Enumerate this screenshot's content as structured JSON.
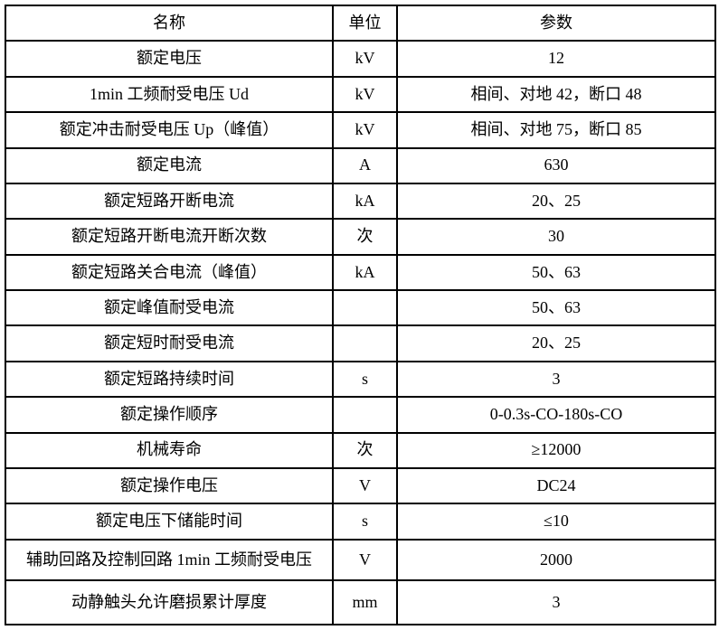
{
  "table": {
    "headers": {
      "name": "名称",
      "unit": "单位",
      "value": "参数"
    },
    "rows": [
      {
        "name": "额定电压",
        "unit": "kV",
        "value": "12"
      },
      {
        "name": "1min 工频耐受电压 Ud",
        "unit": "kV",
        "value": "相间、对地 42，断口 48"
      },
      {
        "name": "额定冲击耐受电压 Up（峰值）",
        "unit": "kV",
        "value": "相间、对地 75，断口 85"
      },
      {
        "name": "额定电流",
        "unit": "A",
        "value": "630"
      },
      {
        "name": "额定短路开断电流",
        "unit": "kA",
        "value": "20、25"
      },
      {
        "name": "额定短路开断电流开断次数",
        "unit": "次",
        "value": "30"
      },
      {
        "name": "额定短路关合电流（峰值）",
        "unit": "kA",
        "value": "50、63"
      },
      {
        "name": "额定峰值耐受电流",
        "unit": "",
        "value": "50、63"
      },
      {
        "name": "额定短时耐受电流",
        "unit": "",
        "value": "20、25"
      },
      {
        "name": "额定短路持续时间",
        "unit": "s",
        "value": "3"
      },
      {
        "name": "额定操作顺序",
        "unit": "",
        "value": "0-0.3s-CO-180s-CO"
      },
      {
        "name": "机械寿命",
        "unit": "次",
        "value": "≥12000"
      },
      {
        "name": "额定操作电压",
        "unit": "V",
        "value": "DC24"
      },
      {
        "name": "额定电压下储能时间",
        "unit": "s",
        "value": "≤10"
      },
      {
        "name": "辅助回路及控制回路 1min 工频耐受电压",
        "unit": "V",
        "value": "2000"
      },
      {
        "name": "动静触头允许磨损累计厚度",
        "unit": "mm",
        "value": "3"
      }
    ],
    "colors": {
      "border": "#000000",
      "text": "#000000",
      "background": "#ffffff"
    }
  }
}
